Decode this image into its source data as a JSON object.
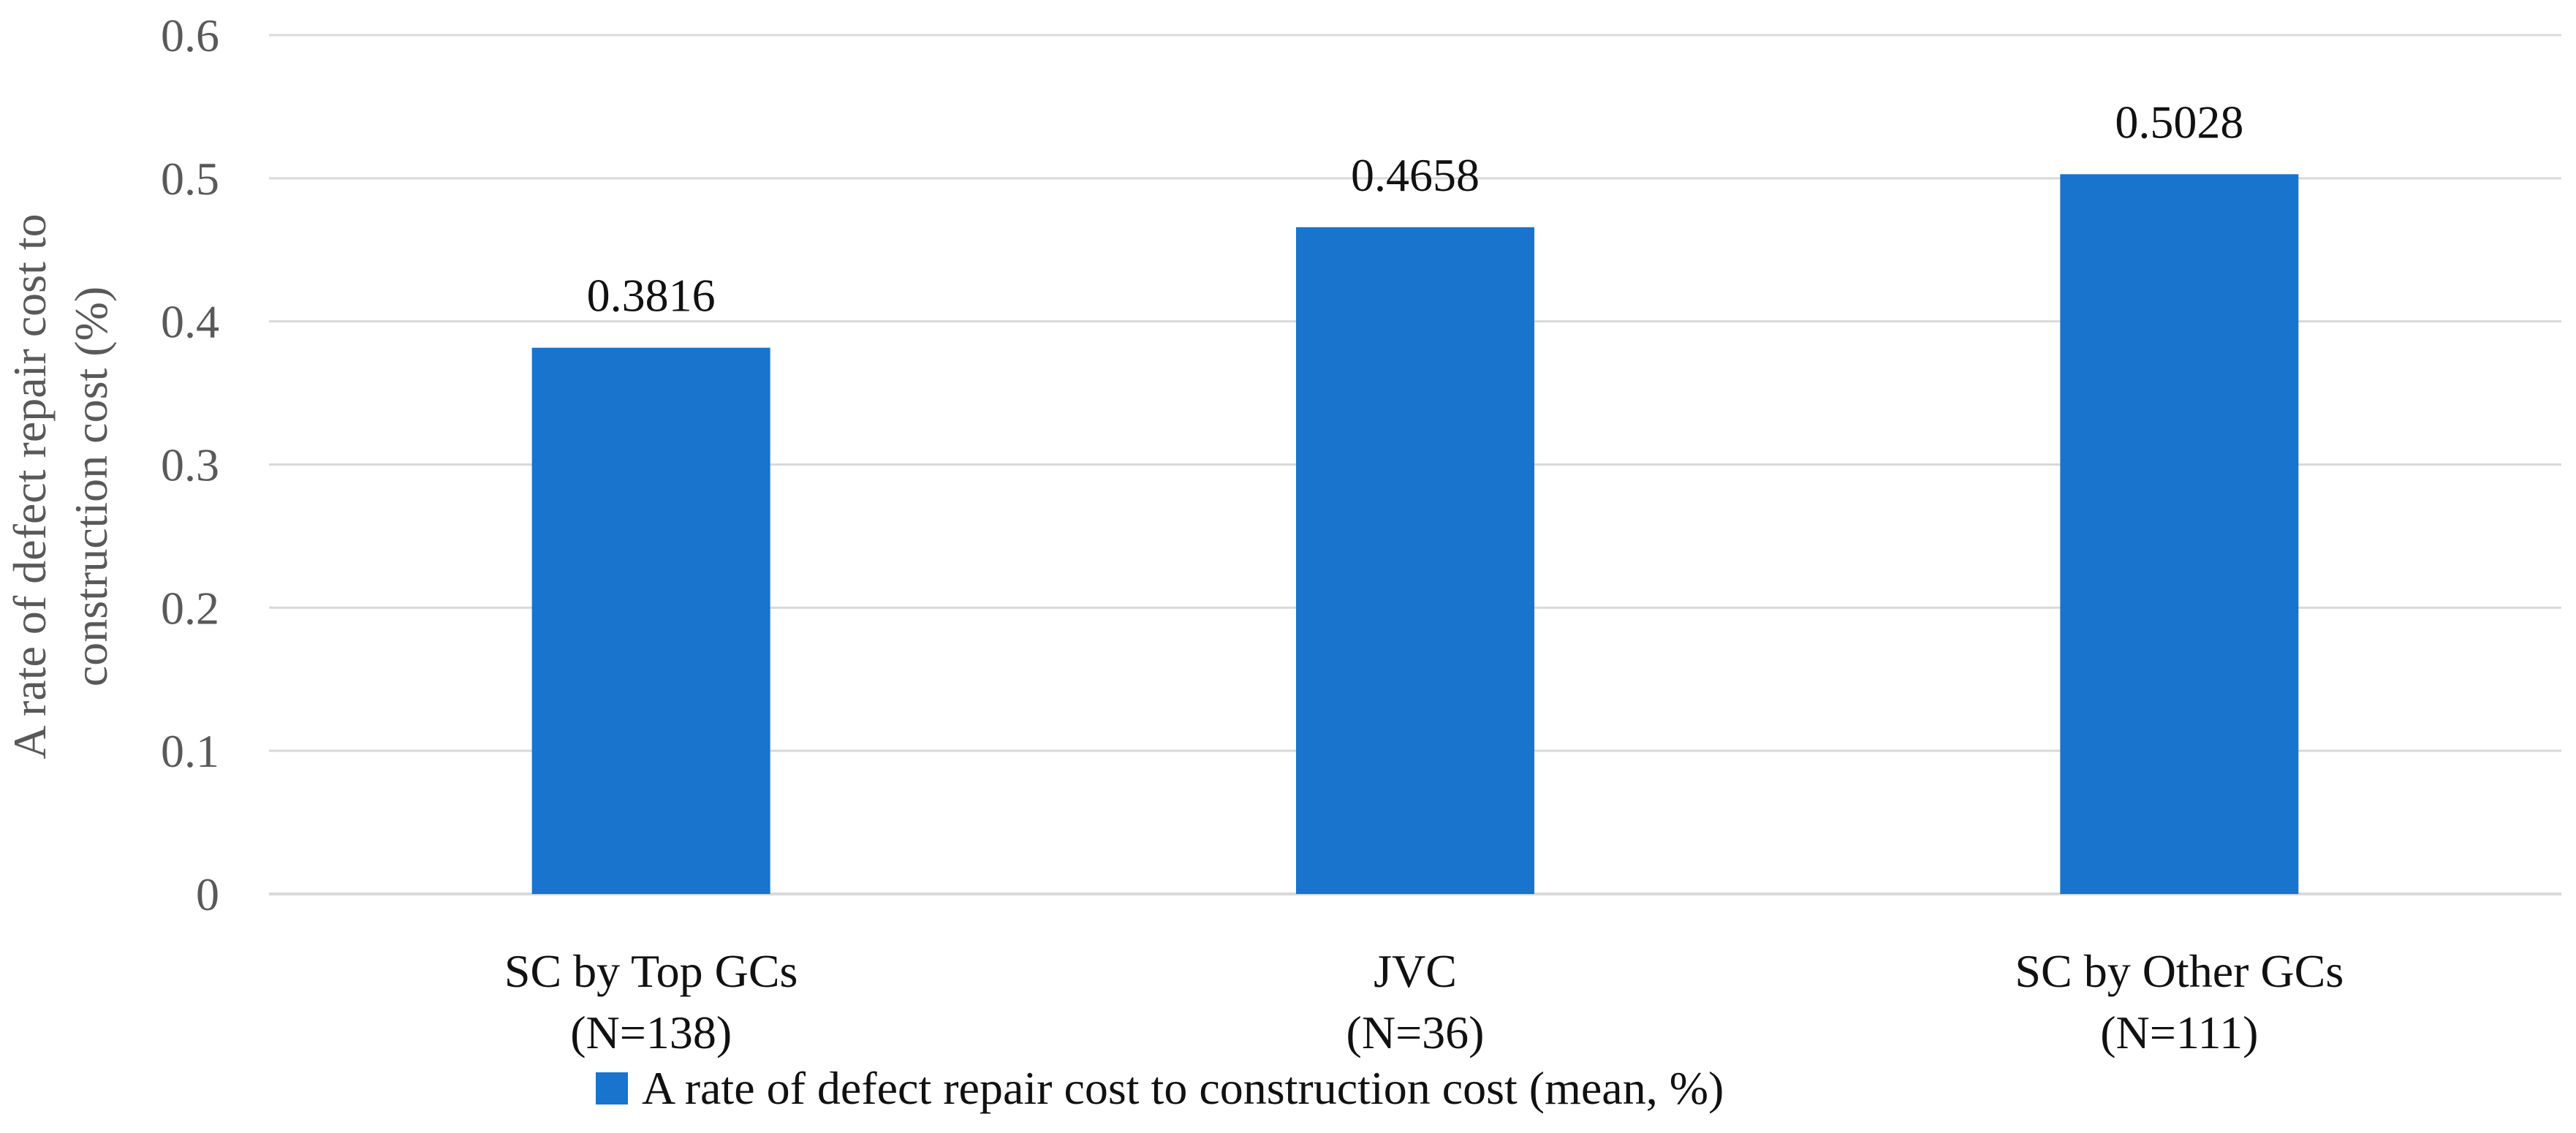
{
  "chart_data": {
    "type": "bar",
    "categories": [
      "SC by Top GCs",
      "JVC",
      "SC by Other GCs"
    ],
    "category_sublabels": [
      "(N=138)",
      "(N=36)",
      "(N=111)"
    ],
    "series": [
      {
        "name": "A rate of defect repair cost to construction cost (mean, %)",
        "values": [
          0.3816,
          0.4658,
          0.5028
        ],
        "data_labels": [
          "0.3816",
          "0.4658",
          "0.5028"
        ],
        "color": "#1874CD"
      }
    ],
    "title": "",
    "xlabel": "",
    "ylabel_lines": [
      "A rate of defect repair cost to",
      "construction cost (%)"
    ],
    "ylim": [
      0,
      0.6
    ],
    "yticks": [
      0,
      0.1,
      0.2,
      0.3,
      0.4,
      0.5,
      0.6
    ],
    "ytick_labels": [
      "0",
      "0.1",
      "0.2",
      "0.3",
      "0.4",
      "0.5",
      "0.6"
    ],
    "grid": true,
    "gridline_color": "#D9D9D9",
    "legend_position": "bottom"
  }
}
